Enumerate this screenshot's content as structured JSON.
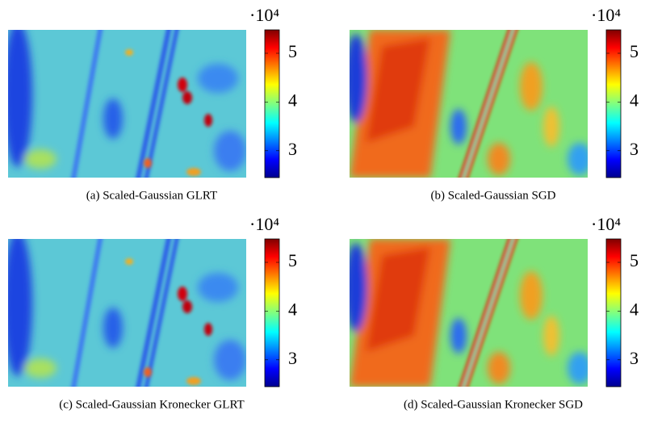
{
  "chart_data": [
    {
      "type": "heatmap",
      "caption": "(a) Scaled-Gaussian GLRT",
      "multiplier": "·10⁴",
      "ylim": [
        2.45,
        5.48
      ],
      "yticks": [
        3,
        4,
        5
      ]
    },
    {
      "type": "heatmap",
      "caption": "(b) Scaled-Gaussian SGD",
      "multiplier": "·10⁴",
      "ylim": [
        2.45,
        5.48
      ],
      "yticks": [
        3,
        4,
        5
      ]
    },
    {
      "type": "heatmap",
      "caption": "(c) Scaled-Gaussian Kronecker GLRT",
      "multiplier": "·10⁴",
      "ylim": [
        2.45,
        5.48
      ],
      "yticks": [
        3,
        4,
        5
      ]
    },
    {
      "type": "heatmap",
      "caption": "(d) Scaled-Gaussian Kronecker SGD",
      "multiplier": "·10⁴",
      "ylim": [
        2.45,
        5.48
      ],
      "yticks": [
        3,
        4,
        5
      ]
    }
  ]
}
